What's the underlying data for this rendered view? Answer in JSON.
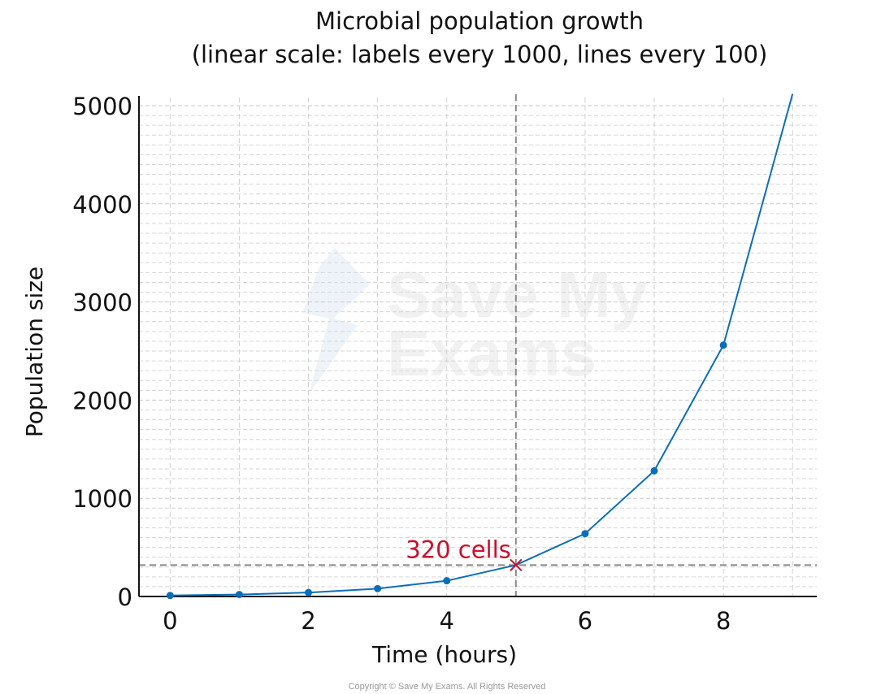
{
  "chart_data": {
    "type": "line",
    "title": "Microbial population growth",
    "subtitle": "(linear scale: labels every 1000, lines every 100)",
    "xlabel": "Time (hours)",
    "ylabel": "Population size",
    "xlim": [
      -0.45,
      9.35
    ],
    "ylim": [
      0,
      5000
    ],
    "x_ticks": [
      0,
      2,
      4,
      6,
      8
    ],
    "x_minor_grid_step": 1,
    "y_ticks": [
      0,
      1000,
      2000,
      3000,
      4000,
      5000
    ],
    "y_minor_grid_step": 100,
    "grid": true,
    "series": [
      {
        "x": [
          0,
          1,
          2,
          3,
          4,
          5,
          6,
          7,
          8,
          9
        ],
        "y": [
          10,
          20,
          40,
          80,
          160,
          320,
          640,
          1280,
          2560,
          5120
        ],
        "color": "#0a6eb8",
        "marker_x": [
          0,
          1,
          2,
          3,
          4,
          6,
          7,
          8
        ]
      }
    ],
    "annotation": {
      "text": "320 cells",
      "x": 5,
      "y": 320,
      "color": "#c8102e",
      "guide_color": "#888888"
    }
  },
  "watermark": {
    "line1": "Save My",
    "line2": "Exams"
  },
  "copyright": "Copyright © Save My Exams. All Rights Reserved"
}
